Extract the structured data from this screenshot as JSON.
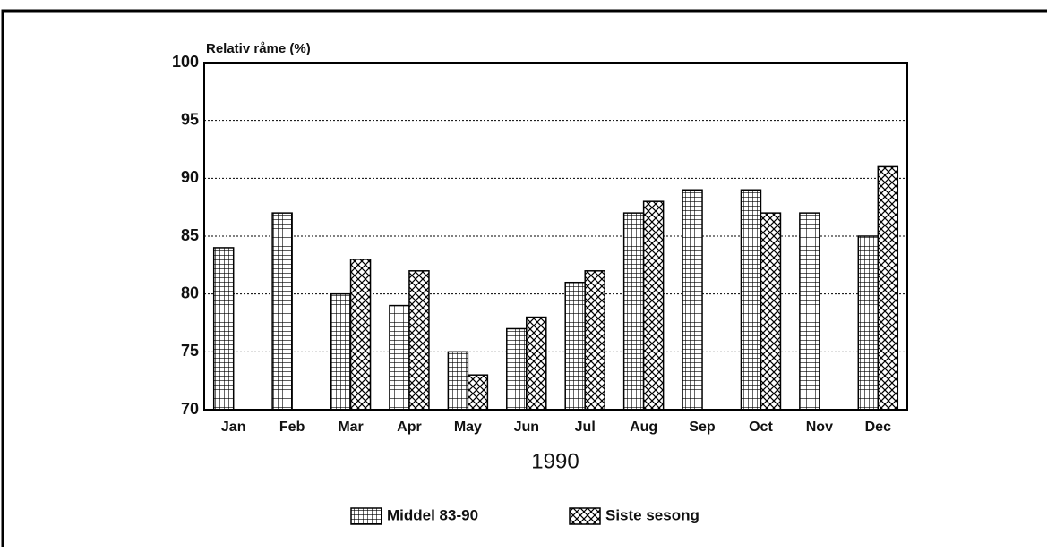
{
  "chart_data": {
    "type": "bar",
    "y_label": "Relativ råme (%)",
    "x_label": "1990",
    "categories": [
      "Jan",
      "Feb",
      "Mar",
      "Apr",
      "May",
      "Jun",
      "Jul",
      "Aug",
      "Sep",
      "Oct",
      "Nov",
      "Dec"
    ],
    "series": [
      {
        "name": "Middel 83-90",
        "color": "#000000",
        "pattern": "grid",
        "values": [
          84,
          87,
          80,
          79,
          75,
          77,
          81,
          87,
          89,
          89,
          87,
          85
        ]
      },
      {
        "name": "Siste sesong",
        "color": "#000000",
        "pattern": "crosshatch",
        "values": [
          null,
          null,
          83,
          82,
          73,
          78,
          82,
          88,
          null,
          87,
          null,
          91
        ]
      }
    ],
    "ylim": [
      70,
      100
    ],
    "yticks": [
      70,
      75,
      80,
      85,
      90,
      95,
      100
    ],
    "grid": true,
    "legend": "bottom"
  }
}
